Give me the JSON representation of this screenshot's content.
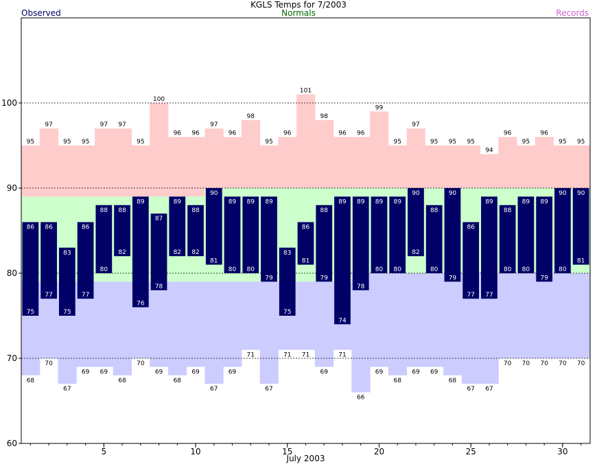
{
  "chart_data": {
    "type": "bar",
    "title": "KGLS Temps for 7/2003",
    "xlabel": "July 2003",
    "ylabel": "",
    "ylim": [
      60,
      110
    ],
    "xlim": [
      0.5,
      31.5
    ],
    "yticks": [
      60,
      70,
      80,
      90,
      100
    ],
    "xticks": [
      5,
      10,
      15,
      20,
      25,
      30
    ],
    "reference_lines": [
      70,
      80,
      90,
      100
    ],
    "legend": {
      "observed": "Observed",
      "normals": "Normals",
      "records": "Records"
    },
    "colors": {
      "observed": "#000066",
      "observed_label": "#000066",
      "normals_band": "#ccffcc",
      "normals_label": "#006600",
      "record_high_band": "#ffcccc",
      "record_low_band": "#ccccff",
      "records_label": "#cc66cc",
      "grid": "#000000"
    },
    "days": [
      1,
      2,
      3,
      4,
      5,
      6,
      7,
      8,
      9,
      10,
      11,
      12,
      13,
      14,
      15,
      16,
      17,
      18,
      19,
      20,
      21,
      22,
      23,
      24,
      25,
      26,
      27,
      28,
      29,
      30,
      31
    ],
    "series": [
      {
        "name": "Observed High",
        "values": [
          86,
          86,
          83,
          86,
          88,
          88,
          89,
          87,
          89,
          88,
          90,
          89,
          89,
          89,
          83,
          86,
          88,
          89,
          89,
          89,
          89,
          90,
          88,
          90,
          86,
          89,
          88,
          89,
          89,
          90,
          90
        ]
      },
      {
        "name": "Observed Low",
        "values": [
          75,
          77,
          75,
          77,
          80,
          82,
          76,
          78,
          82,
          82,
          81,
          80,
          80,
          79,
          75,
          81,
          79,
          74,
          78,
          80,
          80,
          82,
          80,
          79,
          77,
          77,
          80,
          80,
          79,
          80,
          81
        ]
      },
      {
        "name": "Record High",
        "values": [
          95,
          97,
          95,
          95,
          97,
          97,
          95,
          100,
          96,
          96,
          97,
          96,
          98,
          95,
          96,
          101,
          98,
          96,
          96,
          99,
          95,
          97,
          95,
          95,
          95,
          94,
          96,
          95,
          96,
          95,
          95
        ]
      },
      {
        "name": "Record Low",
        "values": [
          68,
          70,
          67,
          69,
          69,
          68,
          70,
          69,
          68,
          69,
          67,
          69,
          71,
          67,
          71,
          71,
          69,
          71,
          66,
          69,
          68,
          69,
          69,
          68,
          67,
          67,
          70,
          70,
          70,
          70,
          70
        ]
      },
      {
        "name": "Normal High",
        "values": [
          89,
          89,
          89,
          89,
          89,
          89,
          89,
          89,
          89,
          89,
          90,
          90,
          90,
          90,
          90,
          90,
          90,
          90,
          90,
          90,
          90,
          90,
          90,
          90,
          90,
          90,
          90,
          90,
          90,
          90,
          90
        ]
      },
      {
        "name": "Normal Low",
        "values": [
          79,
          79,
          79,
          79,
          79,
          79,
          79,
          79,
          79,
          79,
          79,
          79,
          79,
          79,
          79,
          79,
          79,
          79,
          80,
          80,
          80,
          80,
          80,
          80,
          80,
          80,
          80,
          80,
          80,
          80,
          80
        ]
      }
    ]
  }
}
